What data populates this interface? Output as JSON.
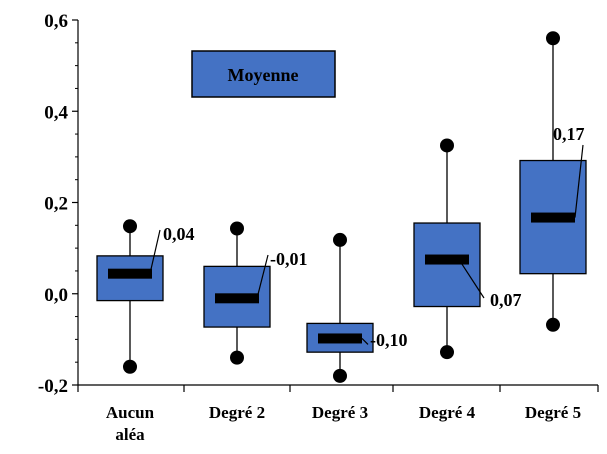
{
  "chart_data": {
    "type": "box",
    "categories": [
      "Aucun aléa",
      "Degré 2",
      "Degré 3",
      "Degré 4",
      "Degré 5"
    ],
    "category_lines": [
      [
        "Aucun",
        "aléa"
      ],
      [
        "Degré 2"
      ],
      [
        "Degré 3"
      ],
      [
        "Degré 4"
      ],
      [
        "Degré 5"
      ]
    ],
    "boxes": [
      {
        "min": -0.16,
        "q1": -0.015,
        "median": 0.044,
        "q3": 0.083,
        "max": 0.148,
        "mean_label": "0,04"
      },
      {
        "min": -0.14,
        "q1": -0.073,
        "median": -0.01,
        "q3": 0.06,
        "max": 0.143,
        "mean_label": "-0,01"
      },
      {
        "min": -0.18,
        "q1": -0.128,
        "median": -0.098,
        "q3": -0.065,
        "max": 0.118,
        "mean_label": "-0,10"
      },
      {
        "min": -0.128,
        "q1": -0.028,
        "median": 0.075,
        "q3": 0.155,
        "max": 0.325,
        "mean_label": "0,07"
      },
      {
        "min": -0.068,
        "q1": 0.044,
        "median": 0.167,
        "q3": 0.292,
        "max": 0.56,
        "mean_label": "0,17"
      }
    ],
    "ylim": [
      -0.2,
      0.6
    ],
    "y_ticks": [
      -0.2,
      0.0,
      0.2,
      0.4,
      0.6
    ],
    "y_tick_labels": [
      "-0,2",
      "0,0",
      "0,2",
      "0,4",
      "0,6"
    ],
    "legend": {
      "label": "Moyenne",
      "placement": "top-left"
    },
    "colors": {
      "box_fill": "#4472c4",
      "stroke": "#000000"
    },
    "grid": false
  }
}
